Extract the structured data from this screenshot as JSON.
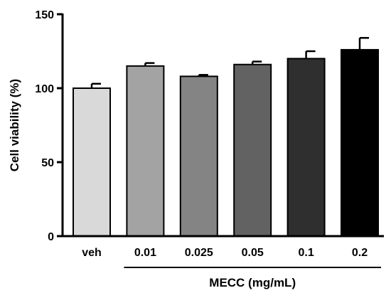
{
  "chart_data": {
    "type": "bar",
    "categories": [
      "veh",
      "0.01",
      "0.025",
      "0.05",
      "0.1",
      "0.2"
    ],
    "values": [
      100,
      115,
      108,
      116,
      120,
      126
    ],
    "errors": [
      3,
      2,
      1,
      2,
      5,
      8
    ],
    "colors": [
      "#d9d9d9",
      "#a3a3a3",
      "#848484",
      "#626262",
      "#2f2f2f",
      "#000000"
    ],
    "ylabel": "Cell viability (%)",
    "ylim": [
      0,
      150
    ],
    "yticks": [
      0,
      50,
      100,
      150
    ],
    "ytick_labels": [
      "0",
      "50",
      "100",
      "150"
    ],
    "group_label": "MECC (mg/mL)",
    "grid": false
  }
}
